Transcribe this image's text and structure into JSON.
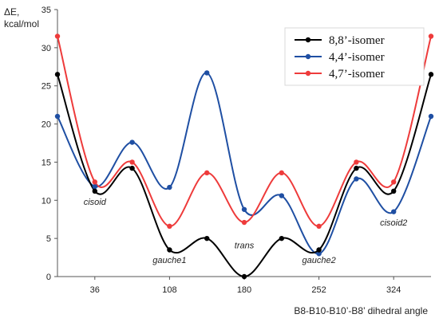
{
  "chart_data": {
    "type": "line",
    "title": "",
    "ylabel_line1": "ΔE,",
    "ylabel_line2": "kcal/mol",
    "xlabel": "B8-B10-B10’-B8’ dihedral angle",
    "x": [
      0,
      36,
      72,
      108,
      144,
      180,
      216,
      252,
      288,
      324,
      360
    ],
    "xlim": [
      0,
      360
    ],
    "ylim": [
      0,
      35
    ],
    "x_ticks": [
      "36",
      "108",
      "180",
      "252",
      "324"
    ],
    "y_ticks": [
      "0",
      "5",
      "10",
      "15",
      "20",
      "25",
      "30",
      "35"
    ],
    "grid": false,
    "legend_position": "top-right",
    "series": [
      {
        "name": "8,8’-isomer",
        "color": "#000000",
        "values": [
          26.5,
          11.2,
          14.2,
          3.5,
          5.0,
          0.0,
          5.0,
          3.5,
          14.2,
          11.2,
          26.5
        ]
      },
      {
        "name": "4,4’-isomer",
        "color": "#1f4fa3",
        "values": [
          21.0,
          11.8,
          17.6,
          11.7,
          26.7,
          8.8,
          10.6,
          3.0,
          12.8,
          8.5,
          21.0
        ]
      },
      {
        "name": "4,7’-isomer",
        "color": "#ee3b3b",
        "values": [
          31.5,
          12.4,
          15.0,
          6.6,
          13.6,
          7.1,
          13.6,
          6.6,
          15.0,
          12.4,
          31.5
        ]
      }
    ],
    "annotations": [
      {
        "text": "cisoid",
        "x": 36,
        "y": 9.4
      },
      {
        "text": "gauche1",
        "x": 108,
        "y": 1.8
      },
      {
        "text": "trans",
        "x": 180,
        "y": 3.7
      },
      {
        "text": "gauche2",
        "x": 252,
        "y": 1.8
      },
      {
        "text": "cisoid2",
        "x": 324,
        "y": 6.7
      }
    ]
  }
}
